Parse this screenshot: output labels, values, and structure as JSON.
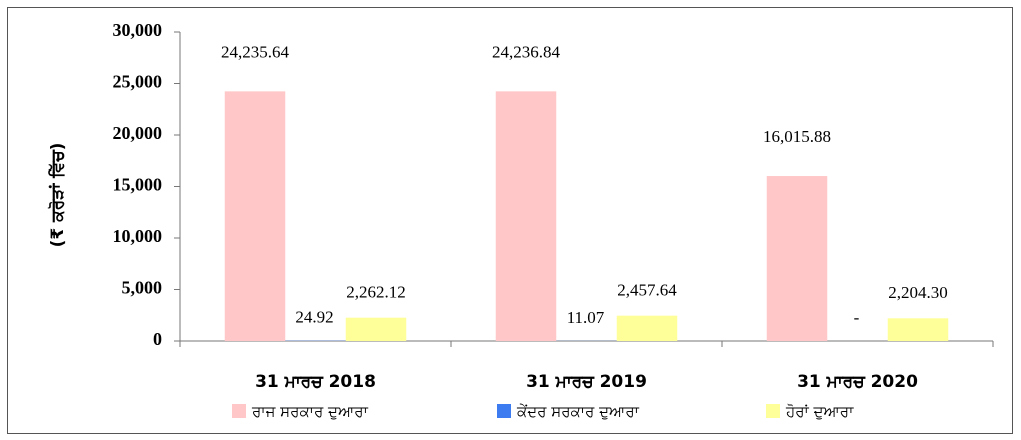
{
  "chart_data": {
    "type": "bar",
    "y_label": "(₹ ਕਰੋੜਾਂ ਵਿੱਚ)",
    "categories": [
      "31 ਮਾਰਚ 2018",
      "31 ਮਾਰਚ 2019",
      "31 ਮਾਰਚ 2020"
    ],
    "series": [
      {
        "name": "ਰਾਜ ਸਰਕਾਰ ਦੁਆਰਾ",
        "color": "#ffc7c7",
        "values": [
          24235.64,
          24236.84,
          16015.88
        ],
        "value_labels": [
          "24,235.64",
          "24,236.84",
          "16,015.88"
        ]
      },
      {
        "name": "ਕੇਂਦਰ ਸਰਕਾਰ ਦੁਆਰਾ",
        "color": "#3d7bf0",
        "values": [
          24.92,
          11.07,
          null
        ],
        "value_labels": [
          "24.92",
          "11.07",
          "-"
        ]
      },
      {
        "name": "ਹੋਰਾਂ ਦੁਆਰਾ",
        "color": "#ffff99",
        "values": [
          2262.12,
          2457.64,
          2204.3
        ],
        "value_labels": [
          "2,262.12",
          "2,457.64",
          "2,204.30"
        ]
      }
    ],
    "ylim": [
      0,
      30000
    ],
    "yticks": [
      0,
      {
        "value": 5000,
        "label": "5,000"
      },
      {
        "value": 10000,
        "label": "10,000"
      },
      {
        "value": 15000,
        "label": "15,000"
      },
      {
        "value": 20000,
        "label": "20,000"
      },
      {
        "value": 25000,
        "label": "25,000"
      },
      {
        "value": 30000,
        "label": "30,000"
      }
    ],
    "grid": false,
    "legend": "bottom"
  }
}
